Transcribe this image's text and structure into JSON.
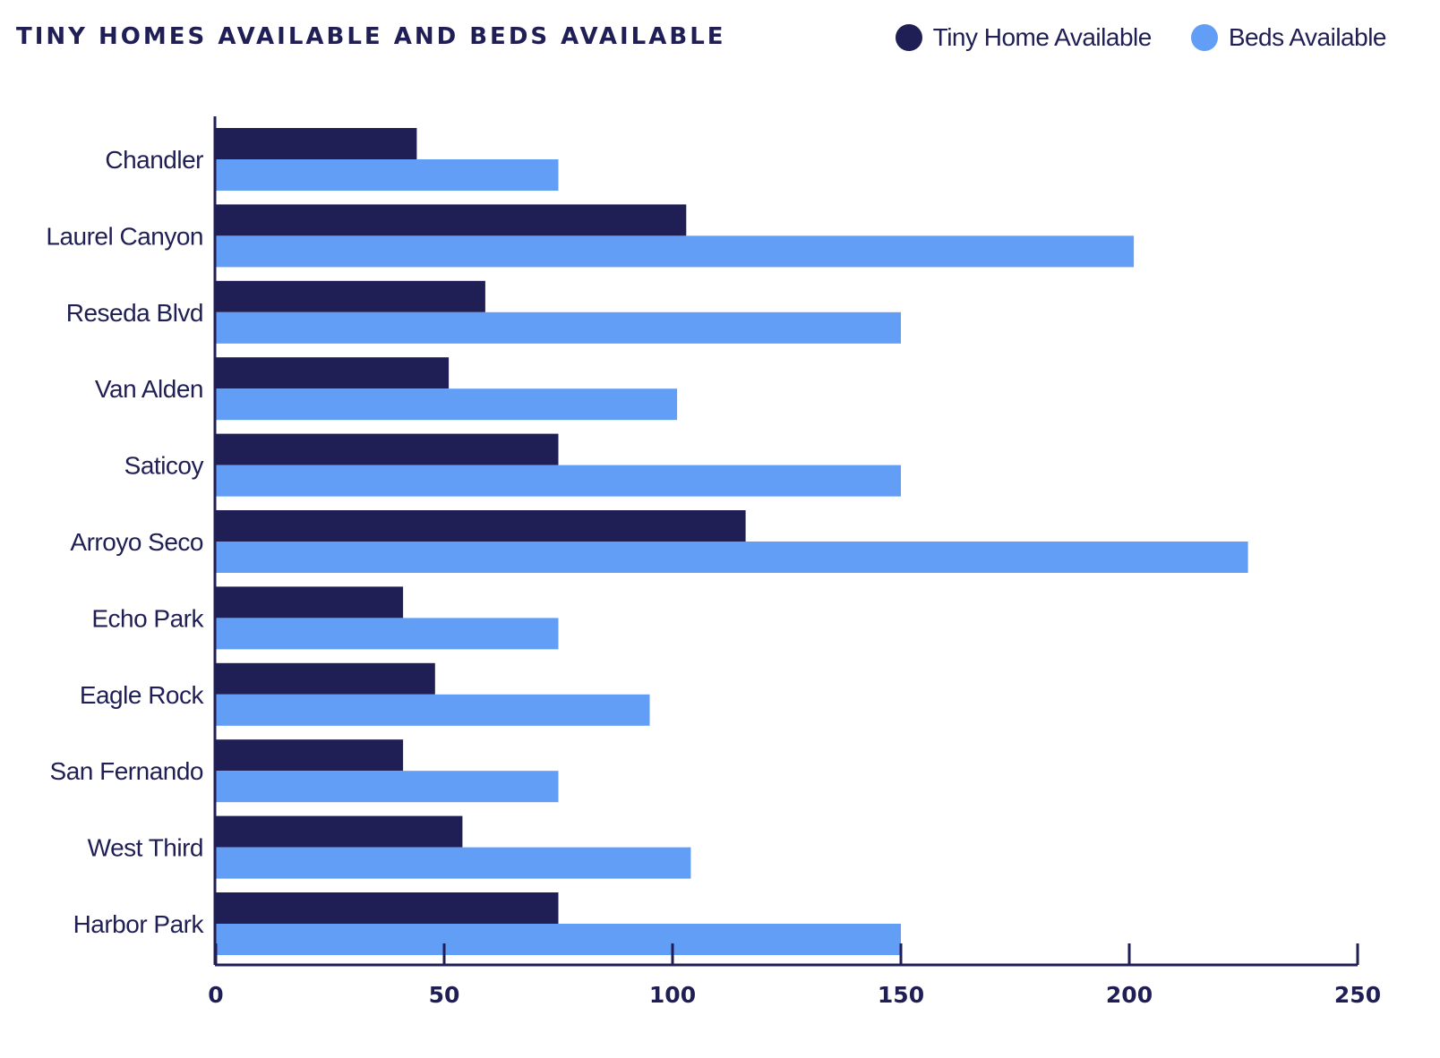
{
  "header": {
    "title": "TINY HOMES AVAILABLE AND BEDS AVAILABLE"
  },
  "colors": {
    "series_dark": "#1f1f55",
    "series_light": "#629df6",
    "axis": "#1f1f55"
  },
  "chart_data": {
    "type": "bar",
    "orientation": "horizontal",
    "title": "TINY HOMES AVAILABLE AND BEDS AVAILABLE",
    "xlabel": "",
    "ylabel": "",
    "xlim": [
      0,
      250
    ],
    "x_ticks": [
      0,
      50,
      100,
      150,
      200,
      250
    ],
    "grid": false,
    "legend_position": "top-right",
    "categories": [
      "Chandler",
      "Laurel Canyon",
      "Reseda Blvd",
      "Van Alden",
      "Saticoy",
      "Arroyo  Seco",
      "Echo Park",
      "Eagle Rock",
      "San Fernando",
      "West Third",
      "Harbor Park"
    ],
    "series": [
      {
        "name": "Tiny Home Available",
        "color": "#1f1f55",
        "values": [
          44,
          103,
          59,
          51,
          75,
          116,
          41,
          48,
          41,
          54,
          75
        ]
      },
      {
        "name": "Beds Available",
        "color": "#629df6",
        "values": [
          75,
          201,
          150,
          101,
          150,
          226,
          75,
          95,
          75,
          104,
          150
        ]
      }
    ]
  }
}
